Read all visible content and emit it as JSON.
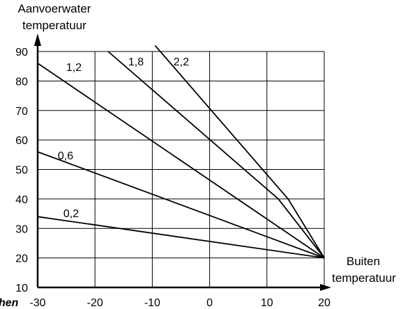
{
  "chart_data": {
    "type": "line",
    "ylabel_lines": [
      "Aanvoerwater",
      "temperatuur"
    ],
    "xlabel_lines": [
      "Buiten",
      "temperatuur"
    ],
    "xlim": [
      -30,
      20
    ],
    "ylim": [
      10,
      92
    ],
    "x_ticks": [
      -30,
      -20,
      -10,
      0,
      10,
      20
    ],
    "y_ticks": [
      10,
      20,
      30,
      40,
      50,
      60,
      70,
      80,
      90
    ],
    "grid": true,
    "series": [
      {
        "name": "0,2",
        "points": [
          [
            -30,
            34
          ],
          [
            20,
            20
          ]
        ]
      },
      {
        "name": "0,6",
        "points": [
          [
            -30,
            56
          ],
          [
            20,
            20
          ]
        ]
      },
      {
        "name": "1,2",
        "points": [
          [
            -30,
            86
          ],
          [
            20,
            20
          ]
        ]
      },
      {
        "name": "1,8",
        "points": [
          [
            -17.7,
            90
          ],
          [
            12,
            40
          ],
          [
            20,
            20
          ]
        ]
      },
      {
        "name": "2,2",
        "points": [
          [
            -9.5,
            92
          ],
          [
            13.7,
            40
          ],
          [
            20,
            20
          ]
        ]
      }
    ]
  },
  "fragment_text": "hen"
}
